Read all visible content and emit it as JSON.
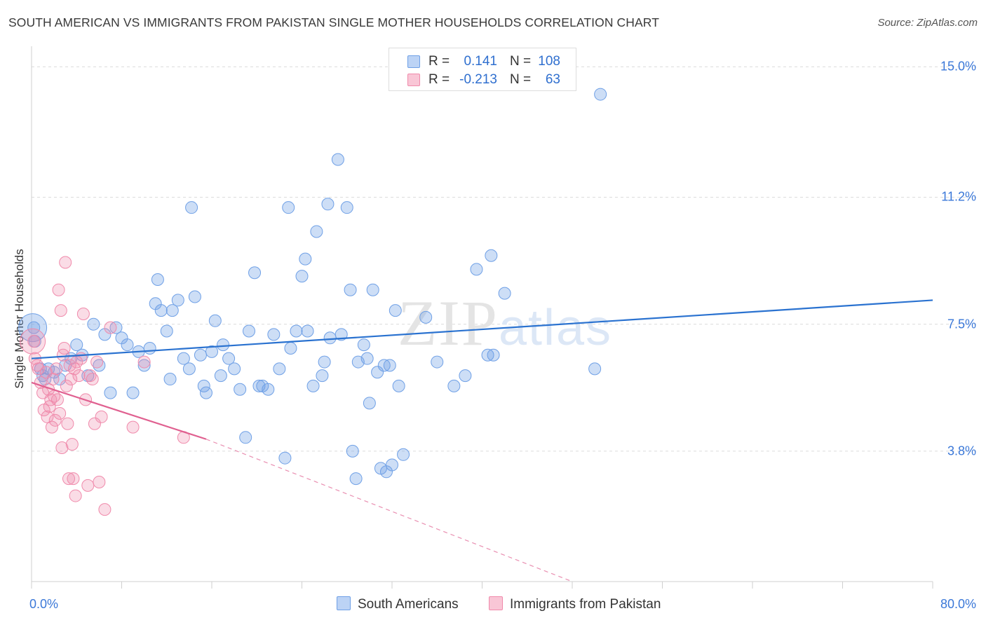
{
  "title": "SOUTH AMERICAN VS IMMIGRANTS FROM PAKISTAN SINGLE MOTHER HOUSEHOLDS CORRELATION CHART",
  "source": "Source: ZipAtlas.com",
  "watermark": "ZIPatlas",
  "legend": {
    "rows": [
      {
        "r_label": "R =",
        "r_value": "0.141",
        "n_label": "N =",
        "n_value": "108"
      },
      {
        "r_label": "R =",
        "r_value": "-0.213",
        "n_label": "N =",
        "n_value": "63"
      }
    ]
  },
  "chart_data": {
    "type": "scatter",
    "title": "SOUTH AMERICAN VS IMMIGRANTS FROM PAKISTAN SINGLE MOTHER HOUSEHOLDS CORRELATION CHART",
    "xlabel": "",
    "ylabel": "Single Mother Households",
    "xlim": [
      0,
      80
    ],
    "ylim": [
      0,
      15.6
    ],
    "x_tick_labels": [
      "0.0%",
      "80.0%"
    ],
    "y_ticks": [
      3.8,
      7.5,
      11.2,
      15.0
    ],
    "y_tick_labels": [
      "3.8%",
      "7.5%",
      "11.2%",
      "15.0%"
    ],
    "legend_placement": "top-center",
    "colors": {
      "south_americans": "#6fa0e6",
      "pakistan": "#f08aab",
      "blue_line": "#2a72d0",
      "pink_line": "#e06090"
    },
    "series": [
      {
        "name": "South Americans",
        "trend": {
          "x0": 0,
          "y0": 6.5,
          "x1": 80,
          "y1": 8.2
        },
        "points": [
          [
            0.2,
            7.4
          ],
          [
            0.3,
            7.0
          ],
          [
            0.8,
            6.2
          ],
          [
            1.0,
            6.0
          ],
          [
            1.2,
            5.9
          ],
          [
            1.5,
            6.2
          ],
          [
            2.0,
            6.1
          ],
          [
            2.5,
            5.9
          ],
          [
            3.0,
            6.3
          ],
          [
            3.5,
            6.5
          ],
          [
            4.0,
            6.9
          ],
          [
            4.5,
            6.6
          ],
          [
            5.0,
            6.0
          ],
          [
            5.5,
            7.5
          ],
          [
            6.0,
            6.3
          ],
          [
            6.5,
            7.2
          ],
          [
            7.0,
            5.5
          ],
          [
            7.5,
            7.4
          ],
          [
            8.0,
            7.1
          ],
          [
            8.5,
            6.9
          ],
          [
            9.0,
            5.5
          ],
          [
            9.5,
            6.7
          ],
          [
            10.0,
            6.3
          ],
          [
            10.5,
            6.8
          ],
          [
            11.0,
            8.1
          ],
          [
            11.2,
            8.8
          ],
          [
            11.5,
            7.9
          ],
          [
            12.0,
            7.3
          ],
          [
            12.3,
            5.9
          ],
          [
            12.5,
            7.9
          ],
          [
            13.0,
            8.2
          ],
          [
            13.5,
            6.5
          ],
          [
            14.0,
            6.2
          ],
          [
            14.2,
            10.9
          ],
          [
            14.5,
            8.3
          ],
          [
            15.0,
            6.6
          ],
          [
            15.3,
            5.7
          ],
          [
            15.5,
            5.5
          ],
          [
            16.0,
            6.7
          ],
          [
            16.3,
            7.6
          ],
          [
            16.8,
            6.0
          ],
          [
            17.0,
            6.9
          ],
          [
            17.5,
            6.5
          ],
          [
            18.0,
            6.2
          ],
          [
            18.5,
            5.6
          ],
          [
            19.0,
            4.2
          ],
          [
            19.3,
            7.3
          ],
          [
            19.8,
            9.0
          ],
          [
            20.2,
            5.7
          ],
          [
            20.5,
            5.7
          ],
          [
            21.0,
            5.6
          ],
          [
            21.5,
            7.2
          ],
          [
            22.0,
            6.2
          ],
          [
            22.5,
            3.6
          ],
          [
            22.8,
            10.9
          ],
          [
            23.0,
            6.8
          ],
          [
            23.5,
            7.3
          ],
          [
            24.0,
            8.9
          ],
          [
            24.3,
            9.4
          ],
          [
            24.5,
            7.3
          ],
          [
            25.0,
            5.7
          ],
          [
            25.3,
            10.2
          ],
          [
            25.8,
            6.0
          ],
          [
            26.0,
            6.4
          ],
          [
            26.3,
            11.0
          ],
          [
            26.5,
            7.1
          ],
          [
            27.2,
            12.3
          ],
          [
            27.5,
            7.2
          ],
          [
            28.0,
            10.9
          ],
          [
            28.3,
            8.5
          ],
          [
            28.5,
            3.8
          ],
          [
            28.8,
            3.0
          ],
          [
            29.0,
            6.4
          ],
          [
            29.5,
            6.9
          ],
          [
            29.8,
            6.5
          ],
          [
            30.0,
            5.2
          ],
          [
            30.3,
            8.5
          ],
          [
            30.7,
            6.1
          ],
          [
            31.0,
            3.3
          ],
          [
            31.3,
            6.3
          ],
          [
            31.5,
            3.2
          ],
          [
            31.8,
            6.3
          ],
          [
            32.0,
            3.4
          ],
          [
            32.3,
            7.9
          ],
          [
            32.6,
            5.7
          ],
          [
            33.0,
            3.7
          ],
          [
            35.0,
            7.7
          ],
          [
            36.0,
            6.4
          ],
          [
            37.5,
            5.7
          ],
          [
            38.5,
            6.0
          ],
          [
            39.5,
            9.1
          ],
          [
            40.5,
            6.6
          ],
          [
            40.8,
            9.5
          ],
          [
            41.0,
            6.6
          ],
          [
            42.0,
            8.4
          ],
          [
            50.0,
            6.2
          ],
          [
            50.5,
            14.2
          ]
        ]
      },
      {
        "name": "Immigrants from Pakistan",
        "trend": {
          "x0": 0,
          "y0": 5.8,
          "x1": 15.5,
          "y1": 4.15,
          "dashed_to_x": 48,
          "dashed_to_y": 0.0
        },
        "points": [
          [
            0.2,
            7.0
          ],
          [
            0.3,
            6.5
          ],
          [
            0.5,
            6.3
          ],
          [
            0.6,
            6.2
          ],
          [
            0.8,
            5.8
          ],
          [
            1.0,
            5.5
          ],
          [
            1.1,
            5.0
          ],
          [
            1.3,
            6.1
          ],
          [
            1.4,
            4.8
          ],
          [
            1.5,
            5.6
          ],
          [
            1.6,
            5.1
          ],
          [
            1.7,
            5.3
          ],
          [
            1.8,
            4.5
          ],
          [
            1.9,
            5.9
          ],
          [
            2.0,
            5.4
          ],
          [
            2.1,
            4.7
          ],
          [
            2.2,
            6.2
          ],
          [
            2.3,
            5.3
          ],
          [
            2.4,
            8.5
          ],
          [
            2.5,
            4.9
          ],
          [
            2.6,
            7.9
          ],
          [
            2.7,
            3.9
          ],
          [
            2.8,
            6.6
          ],
          [
            2.9,
            6.8
          ],
          [
            3.0,
            9.3
          ],
          [
            3.1,
            5.7
          ],
          [
            3.2,
            4.6
          ],
          [
            3.3,
            3.0
          ],
          [
            3.4,
            6.3
          ],
          [
            3.5,
            5.9
          ],
          [
            3.6,
            4.0
          ],
          [
            3.7,
            3.0
          ],
          [
            3.8,
            6.2
          ],
          [
            3.9,
            2.5
          ],
          [
            4.0,
            6.4
          ],
          [
            4.2,
            6.0
          ],
          [
            4.4,
            6.5
          ],
          [
            4.6,
            7.8
          ],
          [
            4.8,
            5.3
          ],
          [
            5.0,
            2.8
          ],
          [
            5.2,
            6.0
          ],
          [
            5.4,
            5.9
          ],
          [
            5.6,
            4.6
          ],
          [
            5.8,
            6.4
          ],
          [
            6.0,
            2.9
          ],
          [
            6.2,
            4.8
          ],
          [
            6.5,
            2.1
          ],
          [
            7.0,
            7.4
          ],
          [
            9.0,
            4.5
          ],
          [
            10.0,
            6.4
          ],
          [
            13.5,
            4.2
          ]
        ]
      }
    ]
  },
  "bottom_legend": [
    "South Americans",
    "Immigrants from Pakistan"
  ]
}
